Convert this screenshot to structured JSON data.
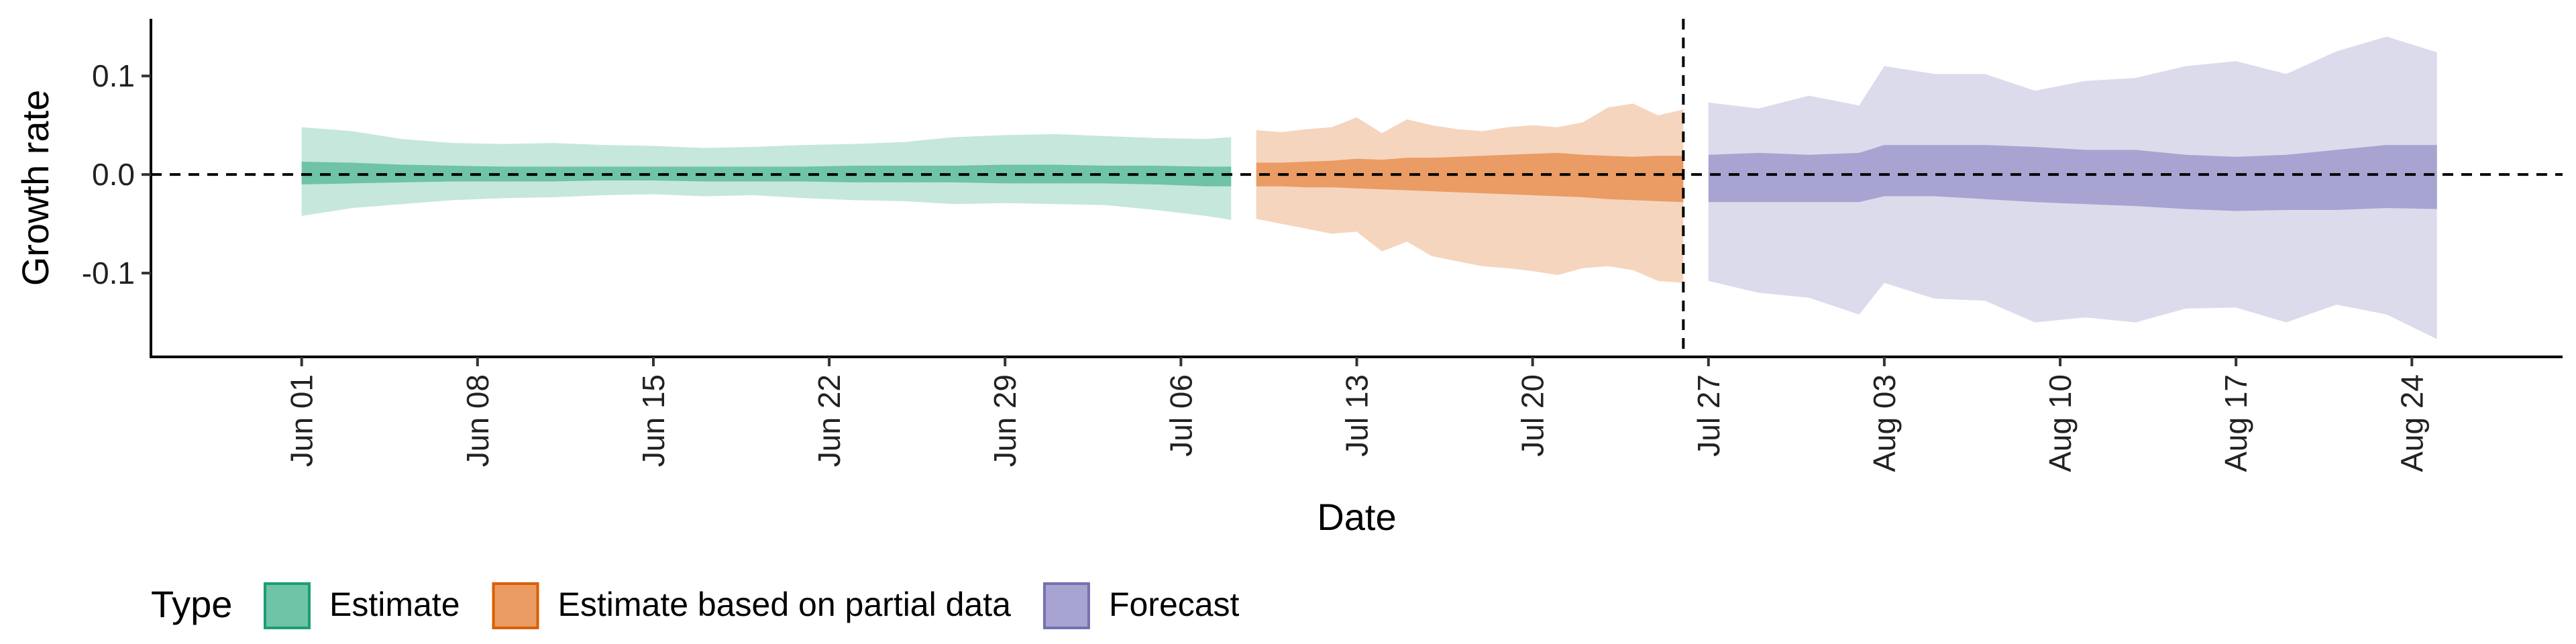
{
  "chart_data": {
    "type": "area",
    "title": "",
    "xlabel": "Date",
    "ylabel": "Growth rate",
    "x_type": "date",
    "xlim": [
      "2020-05-26",
      "2020-08-30"
    ],
    "ylim": [
      -0.185,
      0.158
    ],
    "x_ticks": [
      {
        "date": "2020-06-01",
        "label": "Jun 01"
      },
      {
        "date": "2020-06-08",
        "label": "Jun 08"
      },
      {
        "date": "2020-06-15",
        "label": "Jun 15"
      },
      {
        "date": "2020-06-22",
        "label": "Jun 22"
      },
      {
        "date": "2020-06-29",
        "label": "Jun 29"
      },
      {
        "date": "2020-07-06",
        "label": "Jul 06"
      },
      {
        "date": "2020-07-13",
        "label": "Jul 13"
      },
      {
        "date": "2020-07-20",
        "label": "Jul 20"
      },
      {
        "date": "2020-07-27",
        "label": "Jul 27"
      },
      {
        "date": "2020-08-03",
        "label": "Aug 03"
      },
      {
        "date": "2020-08-10",
        "label": "Aug 10"
      },
      {
        "date": "2020-08-17",
        "label": "Aug 17"
      },
      {
        "date": "2020-08-24",
        "label": "Aug 24"
      }
    ],
    "y_ticks": [
      {
        "value": -0.1,
        "label": "-0.1"
      },
      {
        "value": 0.0,
        "label": "0.0"
      },
      {
        "value": 0.1,
        "label": "0.1"
      }
    ],
    "hline": 0,
    "vline": "2020-07-26",
    "grid": false,
    "legend": {
      "title": "Type",
      "position": "bottom"
    },
    "series": [
      {
        "name": "Estimate",
        "color": "#1b9e77",
        "fill_outer": "#c6e7dc",
        "fill_inner": "#6fc3a6",
        "x": [
          "2020-06-01",
          "2020-06-03",
          "2020-06-05",
          "2020-06-07",
          "2020-06-09",
          "2020-06-11",
          "2020-06-13",
          "2020-06-15",
          "2020-06-17",
          "2020-06-19",
          "2020-06-21",
          "2020-06-23",
          "2020-06-25",
          "2020-06-27",
          "2020-06-29",
          "2020-07-01",
          "2020-07-03",
          "2020-07-05",
          "2020-07-07",
          "2020-07-08"
        ],
        "lower_90": [
          -0.042,
          -0.034,
          -0.03,
          -0.026,
          -0.024,
          -0.023,
          -0.021,
          -0.02,
          -0.022,
          -0.021,
          -0.024,
          -0.026,
          -0.027,
          -0.03,
          -0.029,
          -0.03,
          -0.031,
          -0.036,
          -0.042,
          -0.046
        ],
        "upper_90": [
          0.048,
          0.044,
          0.036,
          0.032,
          0.031,
          0.032,
          0.03,
          0.029,
          0.027,
          0.028,
          0.03,
          0.031,
          0.033,
          0.038,
          0.04,
          0.041,
          0.039,
          0.037,
          0.036,
          0.038
        ],
        "lower_50": [
          -0.01,
          -0.009,
          -0.008,
          -0.007,
          -0.007,
          -0.007,
          -0.006,
          -0.006,
          -0.007,
          -0.007,
          -0.007,
          -0.008,
          -0.008,
          -0.008,
          -0.009,
          -0.009,
          -0.009,
          -0.01,
          -0.012,
          -0.012
        ],
        "upper_50": [
          0.013,
          0.012,
          0.01,
          0.009,
          0.008,
          0.008,
          0.008,
          0.008,
          0.008,
          0.008,
          0.008,
          0.009,
          0.009,
          0.009,
          0.01,
          0.01,
          0.009,
          0.009,
          0.008,
          0.008
        ]
      },
      {
        "name": "Estimate based on partial data",
        "color": "#d95f02",
        "fill_outer": "#f5d5be",
        "fill_inner": "#ea9c64",
        "x": [
          "2020-07-09",
          "2020-07-10",
          "2020-07-11",
          "2020-07-12",
          "2020-07-13",
          "2020-07-14",
          "2020-07-15",
          "2020-07-16",
          "2020-07-17",
          "2020-07-18",
          "2020-07-19",
          "2020-07-20",
          "2020-07-21",
          "2020-07-22",
          "2020-07-23",
          "2020-07-24",
          "2020-07-25",
          "2020-07-26"
        ],
        "lower_90": [
          -0.045,
          -0.05,
          -0.055,
          -0.06,
          -0.058,
          -0.078,
          -0.068,
          -0.083,
          -0.088,
          -0.093,
          -0.095,
          -0.098,
          -0.102,
          -0.095,
          -0.093,
          -0.097,
          -0.108,
          -0.11
        ],
        "upper_90": [
          0.045,
          0.043,
          0.046,
          0.048,
          0.058,
          0.042,
          0.056,
          0.05,
          0.046,
          0.044,
          0.048,
          0.05,
          0.048,
          0.053,
          0.068,
          0.072,
          0.06,
          0.066
        ],
        "lower_50": [
          -0.012,
          -0.012,
          -0.013,
          -0.013,
          -0.014,
          -0.015,
          -0.016,
          -0.017,
          -0.018,
          -0.019,
          -0.02,
          -0.021,
          -0.022,
          -0.023,
          -0.025,
          -0.026,
          -0.027,
          -0.028
        ],
        "upper_50": [
          0.012,
          0.012,
          0.013,
          0.014,
          0.016,
          0.015,
          0.017,
          0.017,
          0.018,
          0.019,
          0.02,
          0.021,
          0.022,
          0.02,
          0.019,
          0.018,
          0.019,
          0.019
        ]
      },
      {
        "name": "Forecast",
        "color": "#7570b3",
        "fill_outer": "#dcdbec",
        "fill_inner": "#a8a4d1",
        "x": [
          "2020-07-27",
          "2020-07-29",
          "2020-07-31",
          "2020-08-02",
          "2020-08-03",
          "2020-08-05",
          "2020-08-07",
          "2020-08-09",
          "2020-08-11",
          "2020-08-13",
          "2020-08-15",
          "2020-08-17",
          "2020-08-19",
          "2020-08-21",
          "2020-08-23",
          "2020-08-25"
        ],
        "lower_90": [
          -0.108,
          -0.12,
          -0.125,
          -0.142,
          -0.11,
          -0.126,
          -0.128,
          -0.15,
          -0.145,
          -0.15,
          -0.136,
          -0.135,
          -0.15,
          -0.132,
          -0.142,
          -0.167
        ],
        "upper_90": [
          0.073,
          0.067,
          0.08,
          0.07,
          0.11,
          0.102,
          0.102,
          0.085,
          0.095,
          0.098,
          0.11,
          0.115,
          0.102,
          0.125,
          0.14,
          0.124
        ],
        "lower_50": [
          -0.028,
          -0.028,
          -0.028,
          -0.028,
          -0.022,
          -0.022,
          -0.025,
          -0.028,
          -0.03,
          -0.032,
          -0.035,
          -0.037,
          -0.036,
          -0.036,
          -0.034,
          -0.035
        ],
        "upper_50": [
          0.02,
          0.022,
          0.02,
          0.022,
          0.03,
          0.03,
          0.03,
          0.028,
          0.025,
          0.025,
          0.02,
          0.018,
          0.02,
          0.025,
          0.03,
          0.03
        ]
      }
    ]
  }
}
